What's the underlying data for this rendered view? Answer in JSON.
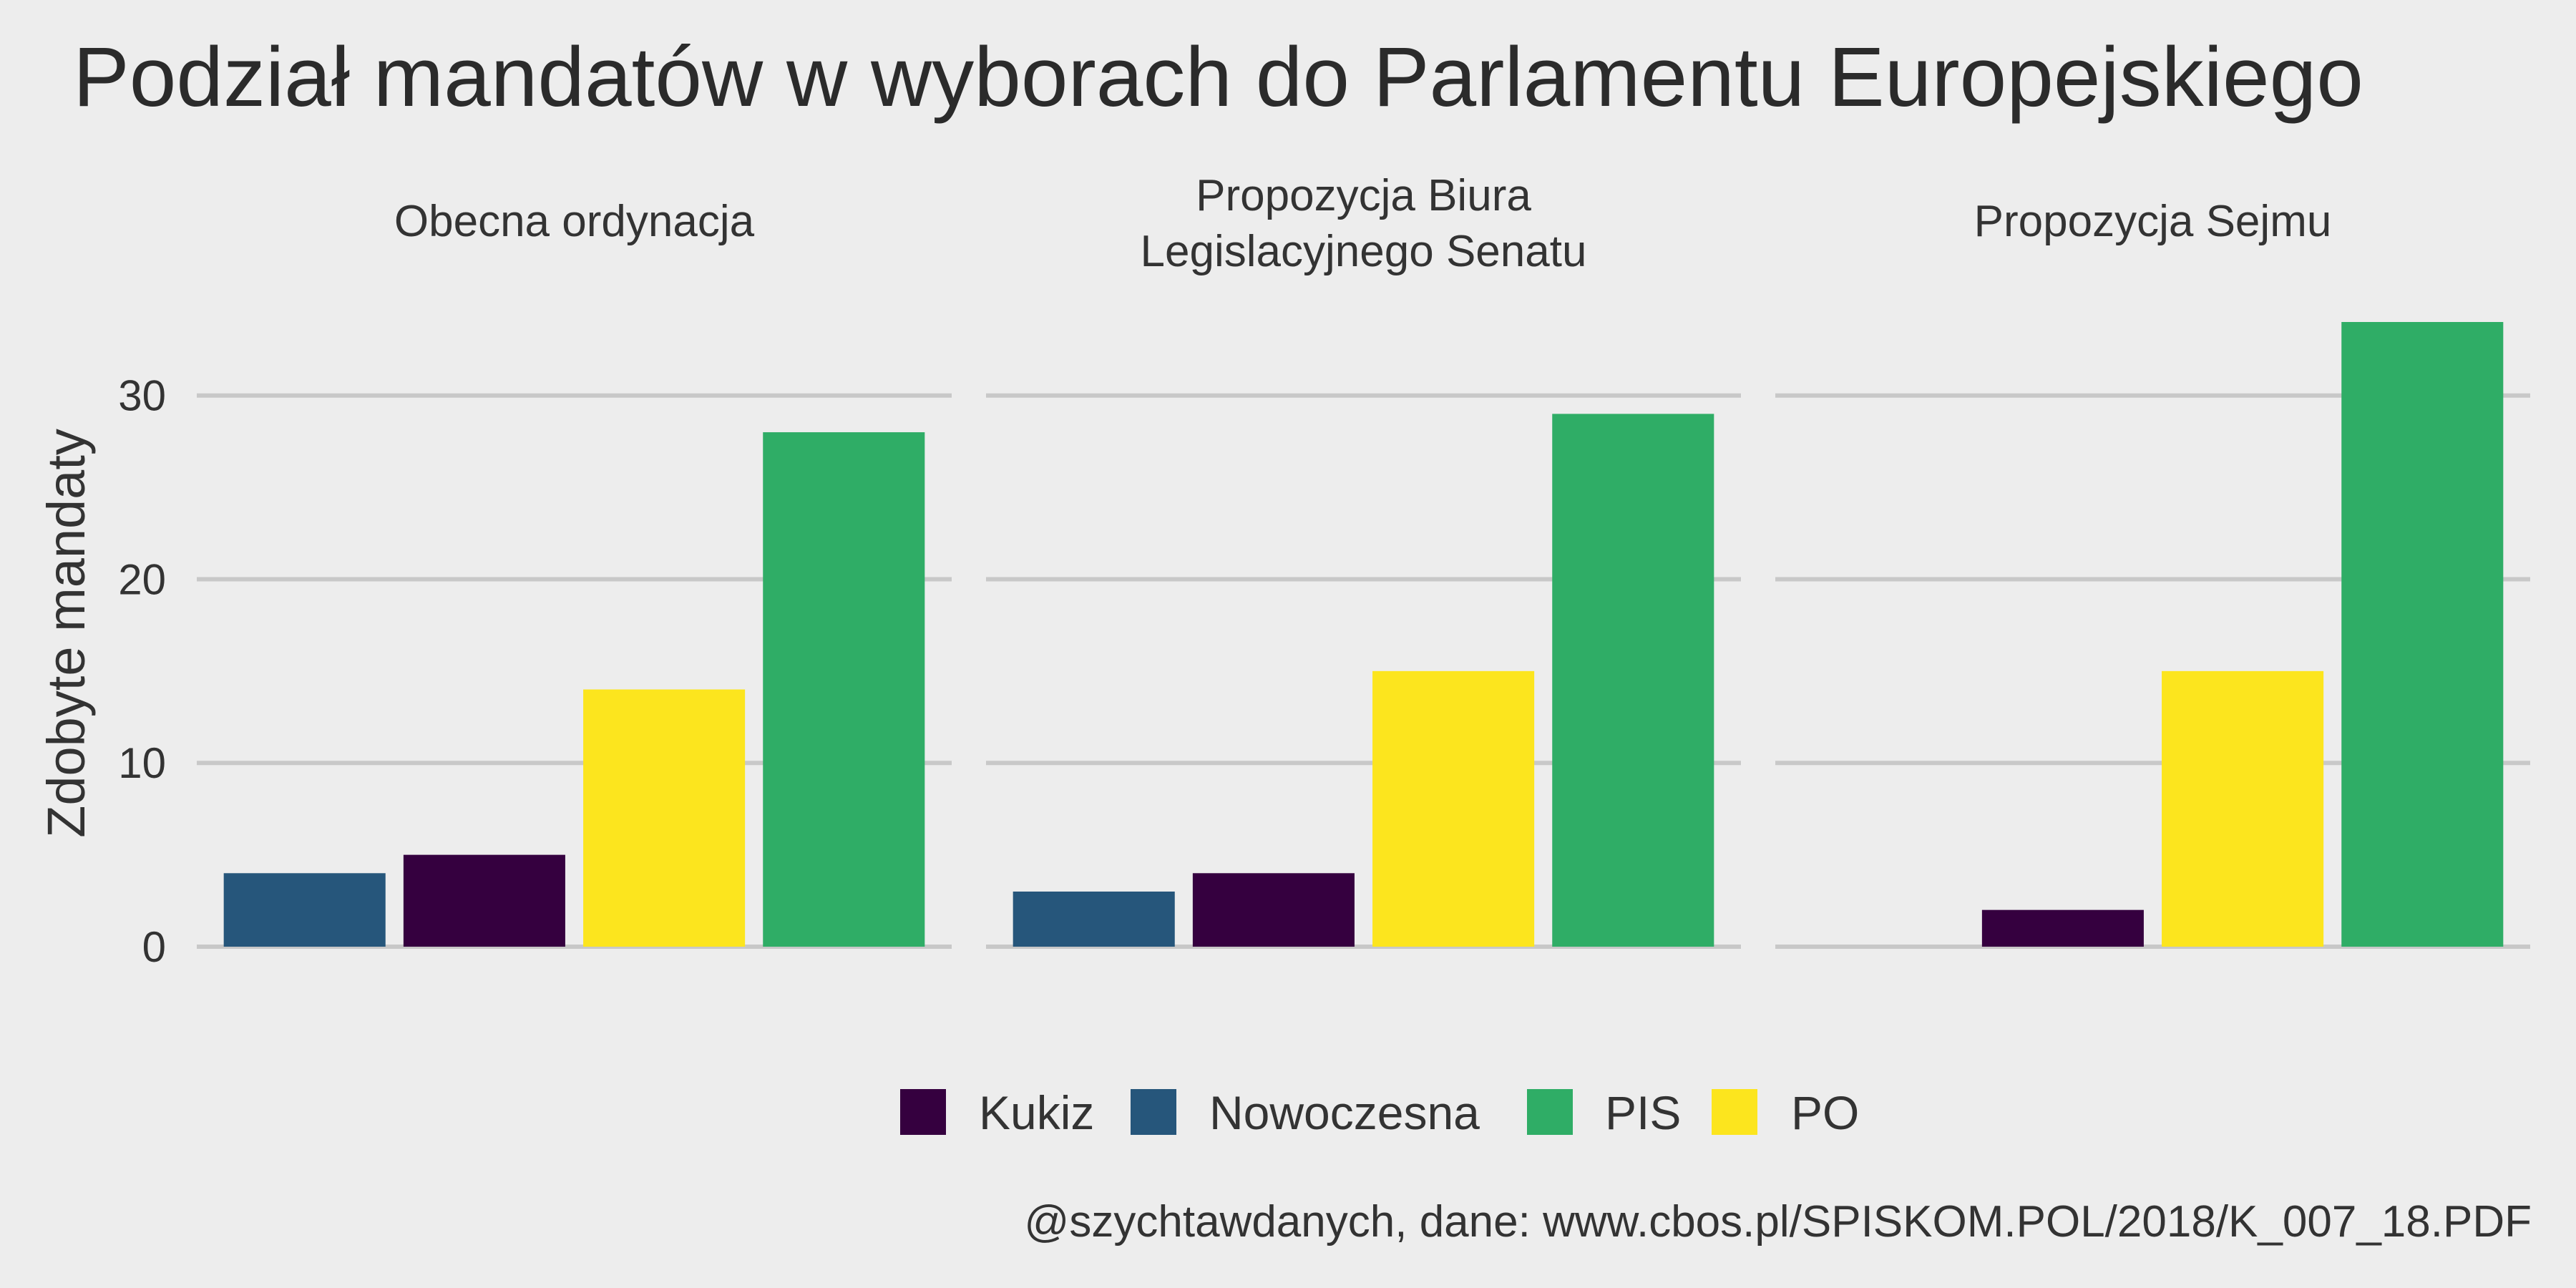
{
  "chart_data": {
    "type": "bar",
    "title": "Podział mandatów w wyborach do Parlamentu Europejskiego",
    "ylabel": "Zdobyte mandaty",
    "xlabel": "",
    "ylim": [
      0,
      34
    ],
    "yticks": [
      0,
      10,
      20,
      30
    ],
    "grid": true,
    "legend_position": "bottom",
    "categories": [
      "Nowoczesna",
      "Kukiz",
      "PO",
      "PIS"
    ],
    "colors": {
      "Kukiz": "#35003f",
      "Nowoczesna": "#26567b",
      "PIS": "#2fad66",
      "PO": "#fce51e"
    },
    "legend": [
      "Kukiz",
      "Nowoczesna",
      "PIS",
      "PO"
    ],
    "facets": [
      {
        "label": [
          "Obecna ordynacja"
        ],
        "values": {
          "Nowoczesna": 4,
          "Kukiz": 5,
          "PO": 14,
          "PIS": 28
        }
      },
      {
        "label": [
          "Propozycja Biura",
          "Legislacyjnego Senatu"
        ],
        "values": {
          "Nowoczesna": 3,
          "Kukiz": 4,
          "PO": 15,
          "PIS": 29
        }
      },
      {
        "label": [
          "Propozycja Sejmu"
        ],
        "values": {
          "Nowoczesna": 0,
          "Kukiz": 2,
          "PO": 15,
          "PIS": 34
        }
      }
    ],
    "caption": "@szychtawdanych, dane: www.cbos.pl/SPISKOM.POL/2018/K_007_18.PDF"
  }
}
